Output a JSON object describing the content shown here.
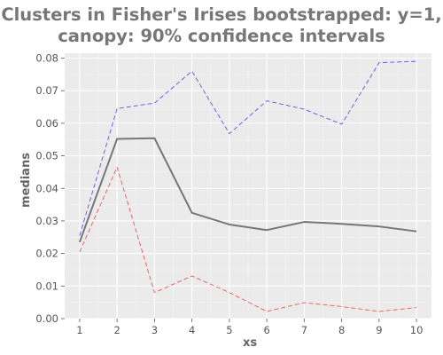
{
  "chart_data": {
    "type": "line",
    "title_lines": [
      "Clusters in Fisher's Irises bootstrapped: y=1,",
      "canopy: 90% confidence intervals"
    ],
    "xlabel": "xs",
    "ylabel": "medians",
    "x": [
      1,
      2,
      3,
      4,
      5,
      6,
      7,
      8,
      9,
      10
    ],
    "xlim": [
      0.6,
      10.4
    ],
    "ylim": [
      0,
      0.0815
    ],
    "yticks": [
      0.0,
      0.01,
      0.02,
      0.03,
      0.04,
      0.05,
      0.06,
      0.07,
      0.08
    ],
    "ytick_labels": [
      "0.00",
      "0.01",
      "0.02",
      "0.03",
      "0.04",
      "0.05",
      "0.06",
      "0.07",
      "0.08"
    ],
    "grid": true,
    "background": "#ebebeb",
    "series": [
      {
        "values": [
          0.0235,
          0.0552,
          0.0554,
          0.0325,
          0.0289,
          0.0272,
          0.0297,
          0.0291,
          0.0283,
          0.0268
        ],
        "color": "#777777",
        "style": "solid"
      },
      {
        "values": [
          0.0255,
          0.0645,
          0.0662,
          0.076,
          0.0568,
          0.0669,
          0.0643,
          0.0597,
          0.0786,
          0.079
        ],
        "color": "#5555ee",
        "style": "dashed"
      },
      {
        "values": [
          0.0205,
          0.0465,
          0.008,
          0.0131,
          0.008,
          0.0022,
          0.0049,
          0.0037,
          0.0022,
          0.0034
        ],
        "color": "#ee5555",
        "style": "dashed"
      }
    ]
  }
}
